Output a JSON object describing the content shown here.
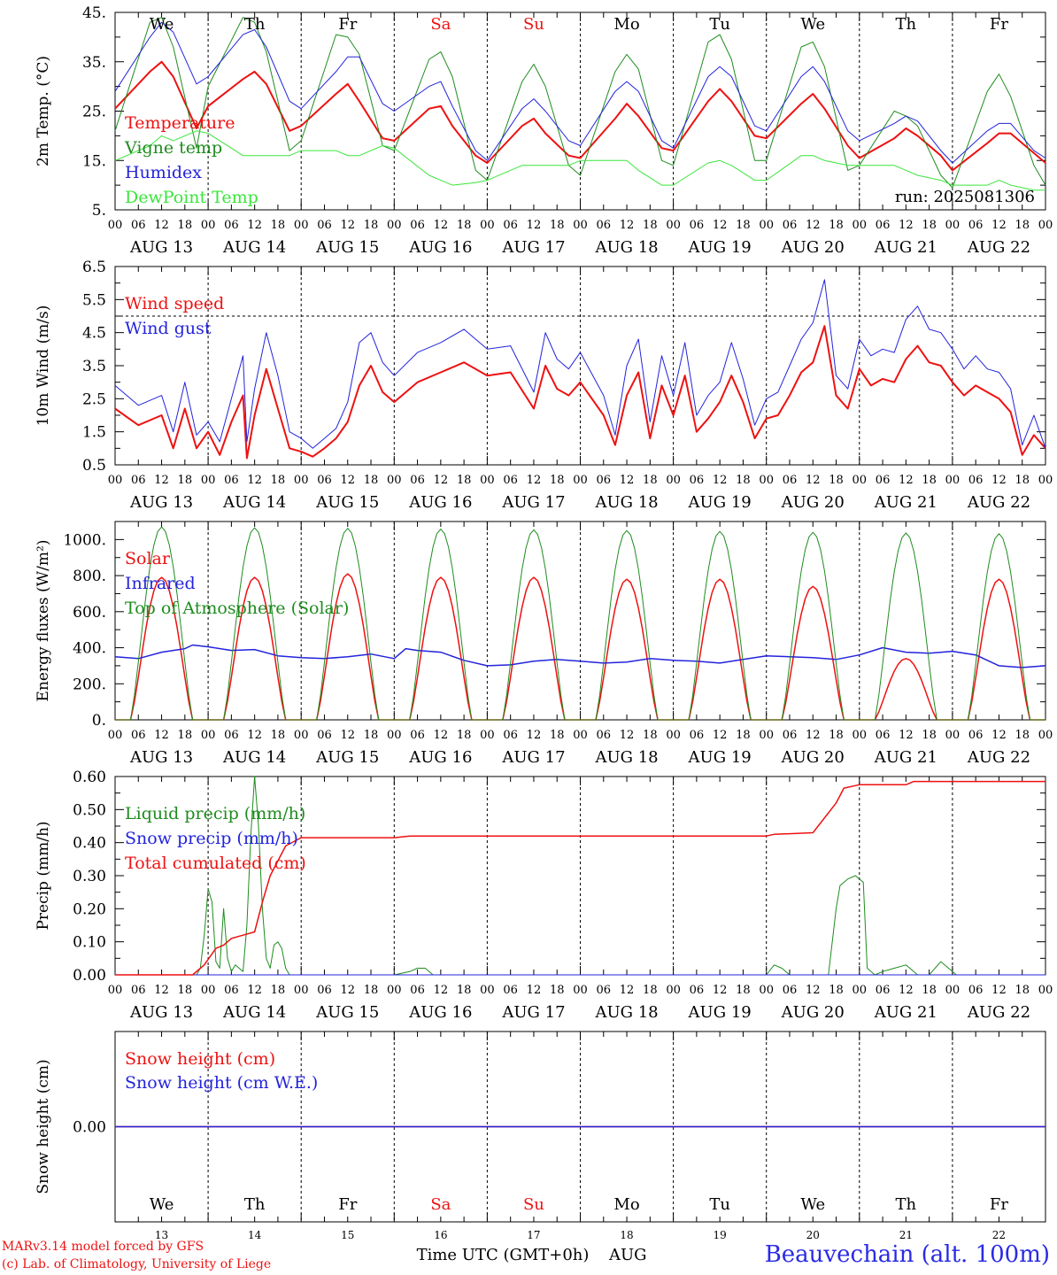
{
  "days": {
    "names": [
      "We",
      "Th",
      "Fr",
      "Sa",
      "Su",
      "Mo",
      "Tu",
      "We",
      "Th",
      "Fr"
    ],
    "weekend": [
      false,
      false,
      false,
      true,
      true,
      false,
      false,
      false,
      false,
      false
    ],
    "dates": [
      "AUG 13",
      "AUG 14",
      "AUG 15",
      "AUG 16",
      "AUG 17",
      "AUG 18",
      "AUG 19",
      "AUG 20",
      "AUG 21",
      "AUG 22"
    ],
    "day_numbers": [
      "13",
      "14",
      "15",
      "16",
      "17",
      "18",
      "19",
      "20",
      "21",
      "22"
    ],
    "hour_ticks": [
      "00",
      "06",
      "12",
      "18"
    ],
    "end_tick": "00"
  },
  "colors": {
    "red": "#ee1111",
    "green": "#1e8c1e",
    "blue": "#2323dd",
    "lime": "#3ae63a",
    "weekend": "#ee1111"
  },
  "run_label": "run: 2025081306",
  "footer": {
    "credit_line1": "MARv3.14 model forced by GFS",
    "credit_line2": "(c) Lab. of Climatology, University of Liege",
    "time_axis_label": "Time UTC (GMT+0h)",
    "month": "AUG",
    "station": "Beauvechain (alt. 100m)"
  },
  "chart_data": [
    {
      "type": "line",
      "ylabel": "2m Temp. (°C)",
      "ylim": [
        5,
        45
      ],
      "yticks": [
        "5.",
        "15.",
        "25.",
        "35.",
        "45."
      ],
      "ytick_values": [
        5,
        15,
        25,
        35,
        45
      ],
      "x": [
        0,
        9,
        12,
        15,
        21,
        24,
        33,
        36,
        39,
        45,
        48,
        57,
        60,
        63,
        69,
        72,
        81,
        84,
        87,
        93,
        96,
        105,
        108,
        111,
        117,
        120,
        129,
        132,
        135,
        141,
        144,
        153,
        156,
        159,
        165,
        168,
        177,
        180,
        183,
        189,
        192,
        201,
        204,
        207,
        213,
        216,
        225,
        228,
        231,
        237,
        240
      ],
      "series": [
        {
          "name": "Temperature",
          "color": "red",
          "width": 2,
          "values": [
            25.5,
            33,
            35,
            32,
            21.5,
            26,
            31.5,
            33,
            30.5,
            21,
            22,
            28.5,
            30.5,
            27,
            19.5,
            19,
            25.5,
            26,
            22,
            16,
            14.5,
            22,
            23.5,
            20.5,
            16,
            15.5,
            23.5,
            26.5,
            24,
            17.5,
            17,
            27,
            29.5,
            27,
            20,
            19.5,
            26.5,
            28.5,
            25.5,
            18,
            15.5,
            19.5,
            21.5,
            20,
            16,
            13,
            18.5,
            20.5,
            20.5,
            16.5,
            14.5
          ]
        },
        {
          "name": "Vigne temp",
          "color": "green",
          "width": 1,
          "values": [
            21,
            43,
            44,
            38,
            17.5,
            30,
            44,
            43,
            37,
            17,
            19,
            40.5,
            40,
            36.5,
            18,
            17,
            35.5,
            37,
            32,
            13,
            11,
            31,
            34.5,
            30,
            14,
            12,
            33,
            36.5,
            33.5,
            15,
            14,
            39,
            40.5,
            35.5,
            15,
            15,
            38,
            39,
            34,
            13,
            14,
            25,
            24,
            22,
            12,
            9.5,
            29,
            32.5,
            28,
            14,
            10
          ]
        },
        {
          "name": "Humidex",
          "color": "blue",
          "width": 1,
          "values": [
            29,
            40,
            43,
            41,
            30.5,
            32,
            40.5,
            41.5,
            38,
            27,
            25.5,
            33,
            36,
            36,
            26.5,
            25,
            30,
            31,
            26,
            17,
            15,
            25.5,
            27.5,
            25,
            19,
            18,
            29,
            31,
            29,
            19,
            17.5,
            32,
            34,
            32,
            22,
            21,
            32,
            34,
            31,
            21,
            19,
            22.5,
            24,
            23,
            17,
            14.5,
            21,
            22.5,
            22.5,
            17,
            15.5
          ]
        },
        {
          "name": "DewPoint Temp",
          "color": "lime",
          "width": 1,
          "values": [
            15,
            18,
            20,
            19,
            21,
            20.5,
            16,
            16,
            16,
            16,
            17,
            17,
            16,
            16,
            18,
            17.5,
            12,
            11,
            10,
            10.5,
            11,
            14,
            14,
            14,
            14,
            15,
            15,
            15,
            13,
            10,
            10,
            14.5,
            15,
            14,
            11,
            11,
            16,
            16,
            15,
            14,
            14,
            14,
            13,
            12,
            11,
            10,
            10,
            11,
            10,
            9,
            9
          ]
        }
      ],
      "legend": [
        "Temperature",
        "Vigne temp",
        "Humidex",
        "DewPoint Temp"
      ]
    },
    {
      "type": "line",
      "ylabel": "10m Wind (m/s)",
      "ylim": [
        0.5,
        6.5
      ],
      "yticks": [
        "0.5",
        "1.5",
        "2.5",
        "3.5",
        "4.5",
        "5.5",
        "6.5"
      ],
      "ytick_values": [
        0.5,
        1.5,
        2.5,
        3.5,
        4.5,
        5.5,
        6.5
      ],
      "reference_line": 5.0,
      "x": [
        0,
        6,
        12,
        15,
        18,
        21,
        24,
        27,
        30,
        33,
        34,
        36,
        39,
        42,
        45,
        48,
        51,
        54,
        57,
        60,
        63,
        66,
        69,
        72,
        78,
        84,
        90,
        96,
        102,
        108,
        111,
        114,
        117,
        120,
        126,
        129,
        132,
        135,
        138,
        141,
        144,
        147,
        150,
        153,
        156,
        159,
        162,
        165,
        168,
        171,
        174,
        177,
        180,
        183,
        186,
        189,
        192,
        195,
        198,
        201,
        204,
        207,
        210,
        213,
        216,
        219,
        222,
        225,
        228,
        231,
        234,
        237,
        240
      ],
      "series": [
        {
          "name": "Wind speed",
          "color": "red",
          "width": 2,
          "values": [
            2.2,
            1.7,
            2.0,
            1.0,
            2.2,
            1.0,
            1.5,
            0.8,
            1.8,
            2.6,
            0.7,
            2.0,
            3.4,
            2.2,
            1.0,
            0.9,
            0.75,
            1.0,
            1.3,
            1.8,
            2.9,
            3.5,
            2.7,
            2.4,
            3.0,
            3.3,
            3.6,
            3.2,
            3.3,
            2.2,
            3.5,
            2.8,
            2.6,
            3.0,
            2.0,
            1.1,
            2.6,
            3.3,
            1.3,
            2.9,
            2.0,
            3.2,
            1.5,
            1.9,
            2.4,
            3.2,
            2.4,
            1.3,
            1.9,
            2.0,
            2.6,
            3.3,
            3.6,
            4.7,
            2.6,
            2.2,
            3.4,
            2.9,
            3.1,
            3.0,
            3.7,
            4.1,
            3.6,
            3.5,
            3.0,
            2.6,
            2.9,
            2.7,
            2.5,
            2.1,
            0.8,
            1.4,
            1.0
          ]
        },
        {
          "name": "Wind gust",
          "color": "blue",
          "width": 1,
          "values": [
            2.9,
            2.3,
            2.6,
            1.5,
            3.0,
            1.4,
            1.8,
            1.2,
            2.5,
            3.8,
            1.2,
            2.8,
            4.5,
            3.2,
            1.5,
            1.3,
            1.0,
            1.3,
            1.6,
            2.4,
            4.2,
            4.5,
            3.6,
            3.2,
            3.9,
            4.2,
            4.6,
            4.0,
            4.1,
            2.7,
            4.5,
            3.7,
            3.4,
            3.9,
            2.6,
            1.4,
            3.5,
            4.3,
            1.8,
            3.8,
            2.6,
            4.2,
            2.0,
            2.6,
            3.0,
            4.2,
            3.1,
            1.7,
            2.5,
            2.7,
            3.5,
            4.3,
            4.8,
            6.1,
            3.2,
            2.8,
            4.3,
            3.8,
            4.0,
            3.9,
            4.9,
            5.3,
            4.6,
            4.5,
            4.0,
            3.4,
            3.8,
            3.4,
            3.3,
            2.8,
            1.1,
            2.0,
            1.0
          ]
        }
      ],
      "legend": [
        "Wind speed",
        "Wind gust"
      ]
    },
    {
      "type": "line",
      "ylabel": "Energy fluxes (W/m²)",
      "ylim": [
        0,
        1100
      ],
      "yticks": [
        "0.",
        "200.",
        "400.",
        "600.",
        "800.",
        "1000."
      ],
      "ytick_values": [
        0,
        200,
        400,
        600,
        800,
        1000
      ],
      "series": [
        {
          "name": "Solar",
          "color": "red",
          "width": 1.5,
          "kind": "diurnal",
          "peaks": [
            790,
            790,
            810,
            790,
            790,
            780,
            780,
            740,
            340,
            780
          ]
        },
        {
          "name": "Infrared",
          "color": "blue",
          "width": 1.5,
          "x": [
            0,
            6,
            12,
            18,
            20,
            24,
            30,
            36,
            42,
            48,
            54,
            60,
            66,
            72,
            75,
            78,
            84,
            90,
            96,
            102,
            108,
            114,
            120,
            126,
            132,
            138,
            144,
            150,
            156,
            162,
            168,
            174,
            180,
            186,
            192,
            198,
            204,
            210,
            216,
            222,
            228,
            234,
            240
          ],
          "values": [
            350,
            340,
            375,
            395,
            415,
            405,
            385,
            390,
            355,
            345,
            340,
            350,
            365,
            340,
            395,
            385,
            375,
            330,
            300,
            305,
            325,
            335,
            325,
            315,
            320,
            340,
            330,
            325,
            315,
            335,
            355,
            350,
            345,
            335,
            360,
            400,
            375,
            370,
            380,
            360,
            300,
            290,
            300
          ]
        },
        {
          "name": "Top of Atmosphere (Solar)",
          "color": "green",
          "width": 1,
          "kind": "diurnal",
          "peaks": [
            1070,
            1065,
            1062,
            1058,
            1054,
            1050,
            1045,
            1040,
            1036,
            1032
          ]
        }
      ],
      "sunrise_hour": 4,
      "sunset_hour": 20,
      "legend": [
        "Solar",
        "Infrared",
        "Top of Atmosphere (Solar)"
      ]
    },
    {
      "type": "line",
      "ylabel": "Precip (mm/h)",
      "ylim": [
        0,
        0.6
      ],
      "yticks": [
        "0.00",
        "0.10",
        "0.20",
        "0.30",
        "0.40",
        "0.50",
        "0.60"
      ],
      "ytick_values": [
        0,
        0.1,
        0.2,
        0.3,
        0.4,
        0.5,
        0.6
      ],
      "series": [
        {
          "name": "Liquid precip (mm/h)",
          "color": "green",
          "width": 1,
          "x": [
            0,
            21,
            22,
            23,
            24,
            25,
            26,
            27,
            28,
            29,
            30,
            31,
            32,
            33,
            34,
            35,
            36,
            37,
            38,
            39,
            40,
            41,
            42,
            43,
            44,
            45,
            46,
            47,
            48,
            72,
            76,
            78,
            80,
            82,
            168,
            170,
            172,
            174,
            180,
            184,
            186,
            187,
            189,
            191,
            193,
            194,
            196,
            198,
            201,
            204,
            207,
            210,
            213,
            215,
            217,
            240
          ],
          "values": [
            0,
            0,
            0.02,
            0.12,
            0.26,
            0.22,
            0.04,
            0.02,
            0.2,
            0.05,
            0.01,
            0.03,
            0.02,
            0.01,
            0.15,
            0.42,
            0.6,
            0.45,
            0.2,
            0.05,
            0.02,
            0.09,
            0.1,
            0.08,
            0.02,
            0,
            0,
            0,
            0,
            0,
            0.01,
            0.02,
            0.02,
            0,
            0,
            0.03,
            0.02,
            0,
            0,
            0,
            0.2,
            0.27,
            0.29,
            0.3,
            0.28,
            0.02,
            0,
            0.01,
            0.02,
            0.03,
            0,
            0,
            0.04,
            0.02,
            0,
            0
          ]
        },
        {
          "name": "Snow precip (mm/h)",
          "color": "blue",
          "width": 1,
          "x": [
            0,
            240
          ],
          "values": [
            0,
            0
          ]
        },
        {
          "name": "Total cumulated (cm)",
          "color": "red",
          "width": 1.5,
          "x": [
            0,
            20,
            23,
            26,
            28,
            30,
            33,
            36,
            38,
            40,
            44,
            48,
            72,
            76,
            168,
            170,
            180,
            186,
            188,
            192,
            204,
            206,
            240
          ],
          "values": [
            0,
            0,
            0.03,
            0.08,
            0.09,
            0.11,
            0.12,
            0.13,
            0.22,
            0.3,
            0.39,
            0.415,
            0.415,
            0.42,
            0.42,
            0.425,
            0.43,
            0.52,
            0.565,
            0.575,
            0.575,
            0.585,
            0.585
          ]
        }
      ],
      "legend": [
        "Liquid precip (mm/h)",
        "Snow precip (mm/h)",
        "Total cumulated (cm)"
      ]
    },
    {
      "type": "line",
      "ylabel": "Snow height (cm)",
      "ylim": [
        -1,
        1
      ],
      "yticks": [
        "0.00"
      ],
      "ytick_values": [
        0
      ],
      "series": [
        {
          "name": "Snow height (cm)",
          "color": "red",
          "width": 1.5,
          "x": [
            0,
            240
          ],
          "values": [
            0,
            0
          ]
        },
        {
          "name": "Snow height (cm W.E.)",
          "color": "blue",
          "width": 1.5,
          "x": [
            0,
            240
          ],
          "values": [
            0,
            0
          ]
        }
      ],
      "legend": [
        "Snow height (cm)",
        "Snow height (cm W.E.)"
      ]
    }
  ]
}
